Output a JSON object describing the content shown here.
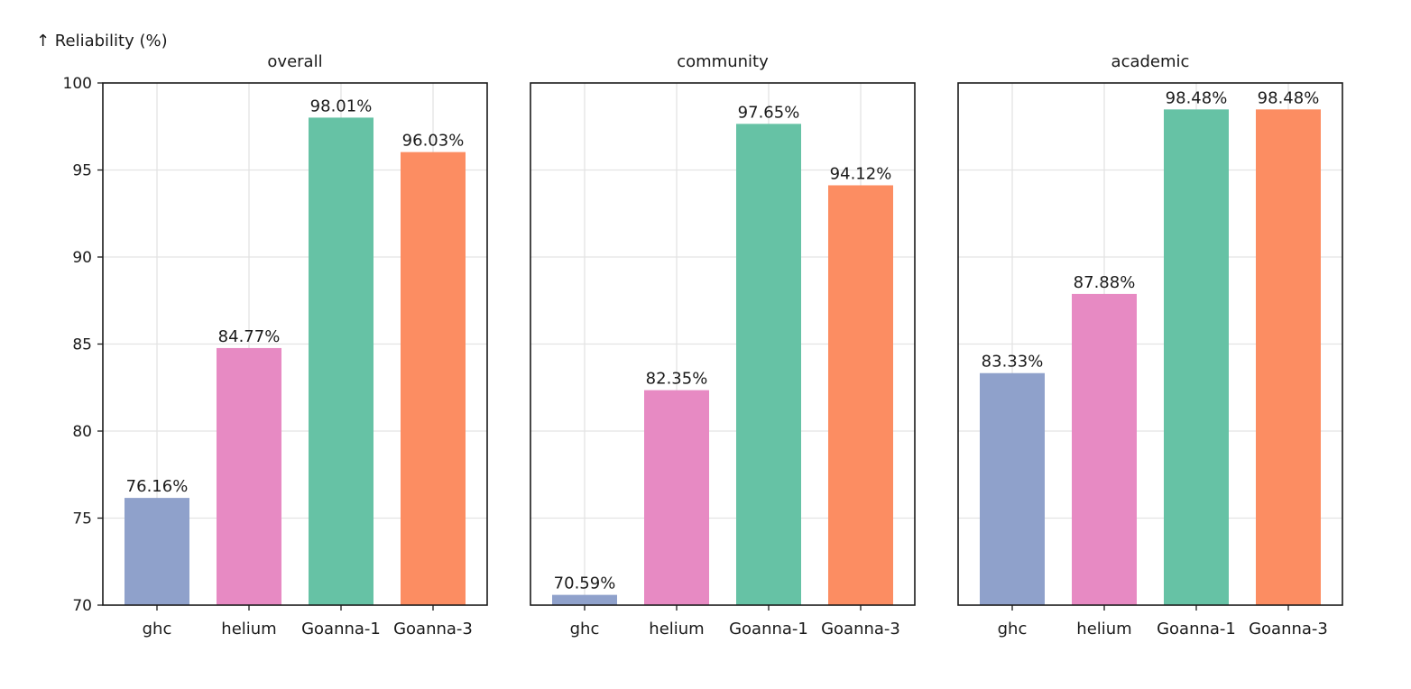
{
  "chart_data": {
    "type": "bar",
    "ylabel": "↑ Reliability (%)",
    "ylim": [
      70,
      100
    ],
    "yticks": [
      70,
      75,
      80,
      85,
      90,
      95,
      100
    ],
    "grid": true,
    "categories": [
      "ghc",
      "helium",
      "Goanna-1",
      "Goanna-3"
    ],
    "colors": [
      "#8fa1cb",
      "#e78ac3",
      "#66c2a5",
      "#fc8d62"
    ],
    "panels": [
      {
        "title": "overall",
        "values": [
          76.16,
          84.77,
          98.01,
          96.03
        ],
        "labels": [
          "76.16%",
          "84.77%",
          "98.01%",
          "96.03%"
        ]
      },
      {
        "title": "community",
        "values": [
          70.59,
          82.35,
          97.65,
          94.12
        ],
        "labels": [
          "70.59%",
          "82.35%",
          "97.65%",
          "94.12%"
        ]
      },
      {
        "title": "academic",
        "values": [
          83.33,
          87.88,
          98.48,
          98.48
        ],
        "labels": [
          "83.33%",
          "87.88%",
          "98.48%",
          "98.48%"
        ]
      }
    ]
  }
}
